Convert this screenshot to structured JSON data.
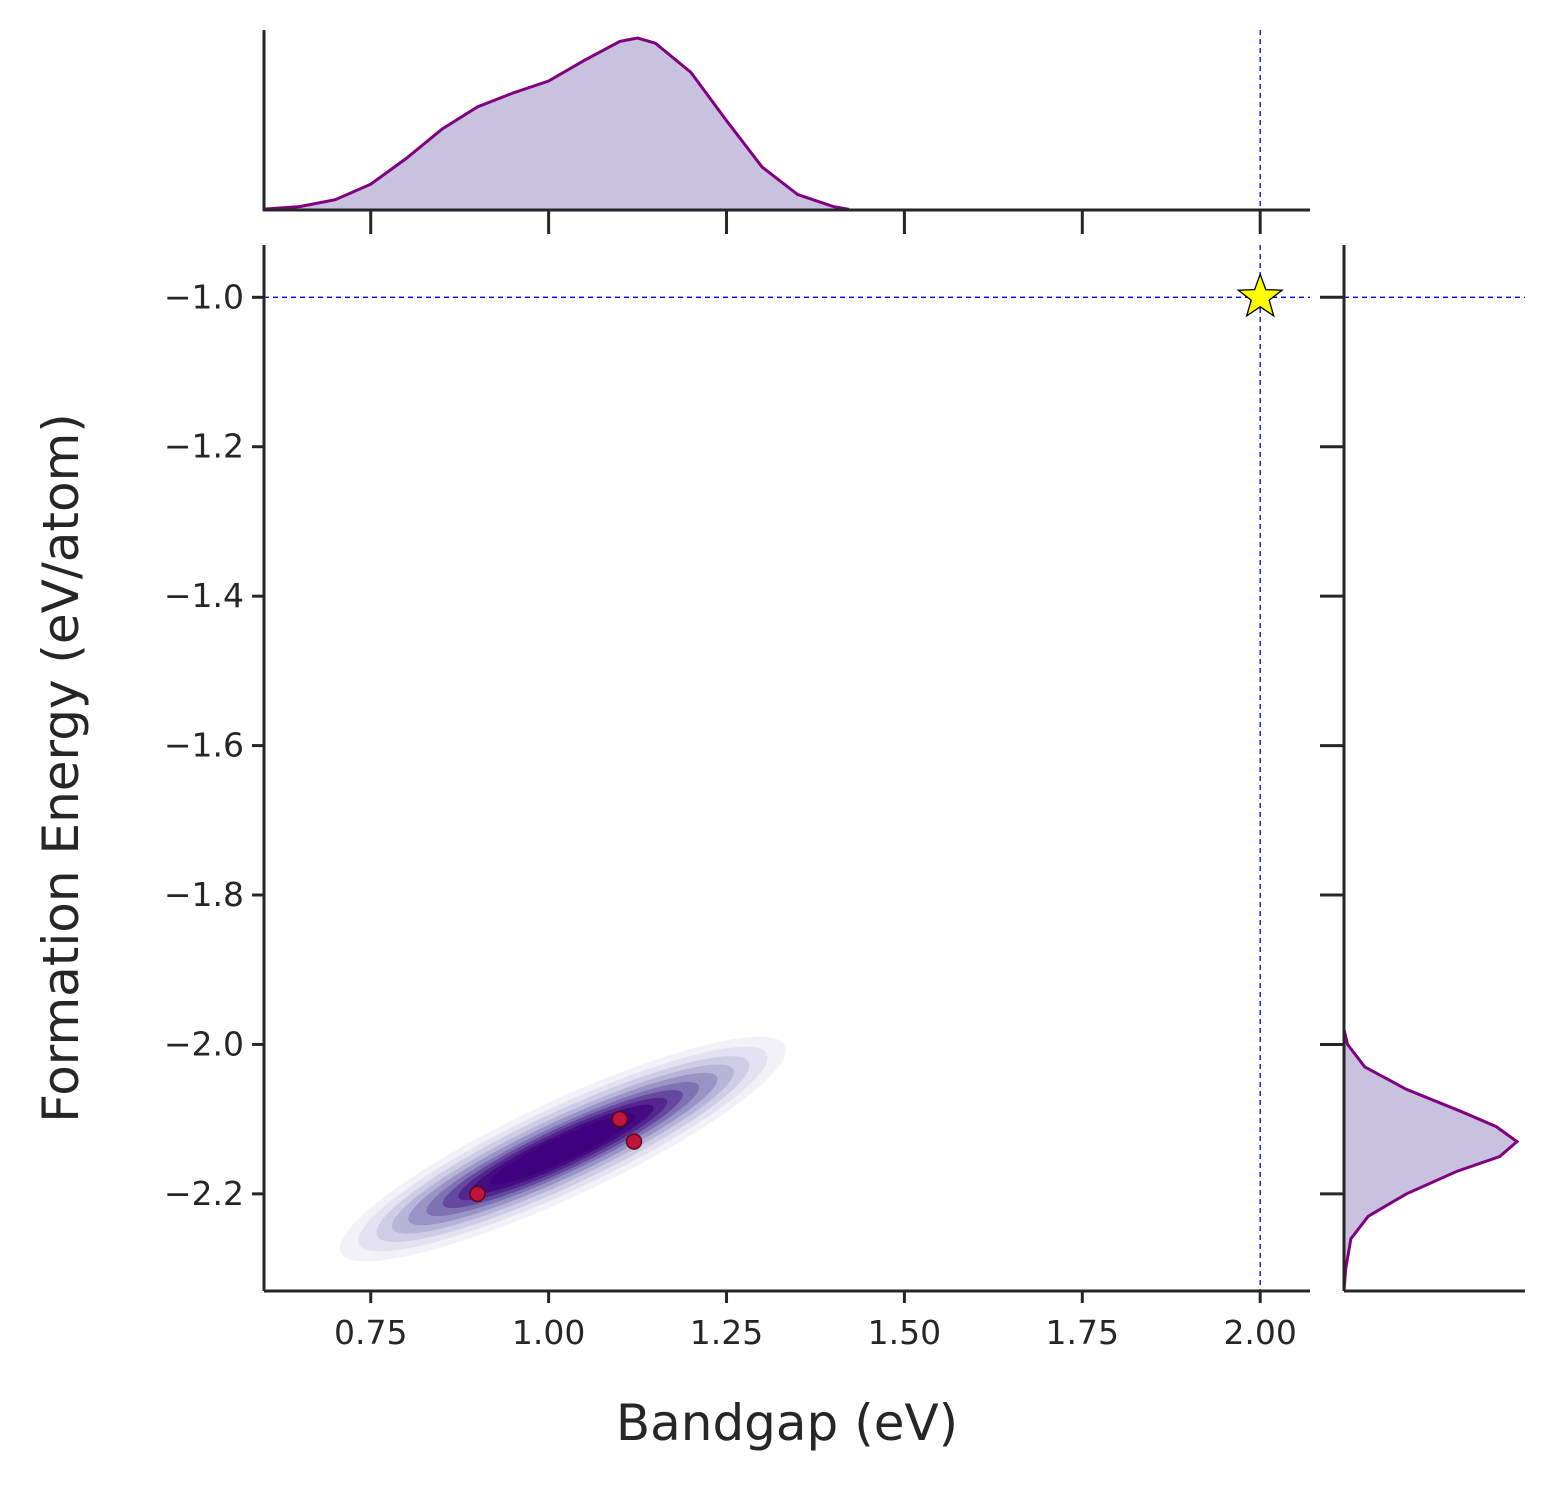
{
  "chart_data": {
    "type": "scatter",
    "title": "",
    "xlabel": "Bandgap (eV)",
    "ylabel": "Formation Energy (eV/atom)",
    "xlim": [
      0.6,
      2.07
    ],
    "ylim": [
      -2.33,
      -0.93
    ],
    "x_ticks": [
      0.75,
      1.0,
      1.25,
      1.5,
      1.75,
      2.0
    ],
    "x_tick_labels": [
      "0.75",
      "1.00",
      "1.25",
      "1.50",
      "1.75",
      "2.00"
    ],
    "y_ticks": [
      -1.0,
      -1.2,
      -1.4,
      -1.6,
      -1.8,
      -2.0,
      -2.2
    ],
    "y_tick_labels": [
      "−1.0",
      "−1.2",
      "−1.4",
      "−1.6",
      "−1.8",
      "−2.0",
      "−2.2"
    ],
    "grid": false,
    "points": [
      {
        "x": 0.9,
        "y": -2.2
      },
      {
        "x": 1.1,
        "y": -2.1
      },
      {
        "x": 1.12,
        "y": -2.13
      }
    ],
    "target": {
      "x": 2.0,
      "y": -1.0,
      "marker": "star"
    },
    "reference_lines": {
      "x": 2.0,
      "y": -1.0
    },
    "kde": {
      "center": [
        1.02,
        -2.14
      ],
      "colormap": "Purples",
      "marginal_x_curve": [
        [
          0.6,
          0.005
        ],
        [
          0.65,
          0.02
        ],
        [
          0.7,
          0.06
        ],
        [
          0.75,
          0.15
        ],
        [
          0.8,
          0.3
        ],
        [
          0.85,
          0.47
        ],
        [
          0.9,
          0.6
        ],
        [
          0.95,
          0.68
        ],
        [
          1.0,
          0.75
        ],
        [
          1.05,
          0.87
        ],
        [
          1.1,
          0.98
        ],
        [
          1.125,
          1.0
        ],
        [
          1.15,
          0.97
        ],
        [
          1.2,
          0.8
        ],
        [
          1.25,
          0.52
        ],
        [
          1.3,
          0.25
        ],
        [
          1.35,
          0.09
        ],
        [
          1.4,
          0.02
        ],
        [
          1.42,
          0.005
        ]
      ],
      "marginal_y_curve": [
        [
          -1.98,
          0.0
        ],
        [
          -2.0,
          0.02
        ],
        [
          -2.03,
          0.12
        ],
        [
          -2.06,
          0.36
        ],
        [
          -2.09,
          0.68
        ],
        [
          -2.11,
          0.88
        ],
        [
          -2.13,
          1.0
        ],
        [
          -2.15,
          0.9
        ],
        [
          -2.17,
          0.65
        ],
        [
          -2.2,
          0.36
        ],
        [
          -2.23,
          0.14
        ],
        [
          -2.26,
          0.04
        ],
        [
          -2.3,
          0.01
        ],
        [
          -2.33,
          0.0
        ]
      ]
    },
    "colors": {
      "reference_line": "#0000ee",
      "point_fill": "#c0143c",
      "point_edge": "#5a0a1e",
      "star_fill": "#ffff00",
      "marginal_line": "#800080",
      "marginal_fill": "#bcb4d8",
      "density_dark": "#3f007d"
    }
  }
}
